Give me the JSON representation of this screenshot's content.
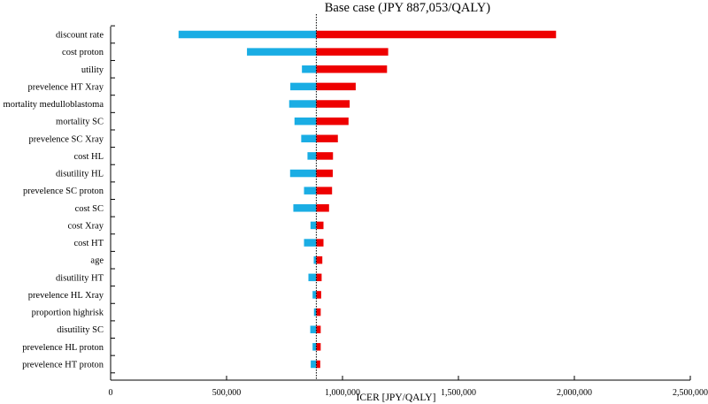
{
  "chart_data": {
    "type": "tornado",
    "title": "Base case (JPY 887,053/QALY)",
    "base_case": 887053,
    "xlabel": "ICER [JPY/QALY]",
    "ylabel": "",
    "xlim": [
      0,
      2500000
    ],
    "x_ticks": [
      0,
      500000,
      1000000,
      1500000,
      2000000,
      2500000
    ],
    "x_tick_labels": [
      "0",
      "500,000",
      "1,000,000",
      "1,500,000",
      "2,000,000",
      "2,500,000"
    ],
    "grid": false,
    "legend": null,
    "colors": {
      "low": "#1AADE4",
      "high": "#EE0000"
    },
    "parameters": [
      {
        "name": "discount rate",
        "low": 293000,
        "high": 1921000
      },
      {
        "name": "cost proton",
        "low": 588000,
        "high": 1197000
      },
      {
        "name": "utility",
        "low": 825000,
        "high": 1192000
      },
      {
        "name": "prevelence HT Xray",
        "low": 775000,
        "high": 1057000
      },
      {
        "name": "mortality medulloblastoma",
        "low": 770000,
        "high": 1031000
      },
      {
        "name": "mortality SC",
        "low": 793000,
        "high": 1026000
      },
      {
        "name": "prevelence SC Xray",
        "low": 822000,
        "high": 980000
      },
      {
        "name": "cost HL",
        "low": 849000,
        "high": 959000
      },
      {
        "name": "disutility HL",
        "low": 774000,
        "high": 958000
      },
      {
        "name": "prevelence SC proton",
        "low": 834000,
        "high": 955000
      },
      {
        "name": "cost SC",
        "low": 788000,
        "high": 942000
      },
      {
        "name": "cost Xray",
        "low": 862000,
        "high": 918000
      },
      {
        "name": "cost HT",
        "low": 834000,
        "high": 918000
      },
      {
        "name": "age",
        "low": 876000,
        "high": 913000
      },
      {
        "name": "disutility HT",
        "low": 853000,
        "high": 910000
      },
      {
        "name": "prevelence HL Xray",
        "low": 871000,
        "high": 908000
      },
      {
        "name": "proportion highrisk",
        "low": 877000,
        "high": 906000
      },
      {
        "name": "disutility SC",
        "low": 861000,
        "high": 906000
      },
      {
        "name": "prevelence HL proton",
        "low": 871000,
        "high": 906000
      },
      {
        "name": "prevelence HT proton",
        "low": 863000,
        "high": 904000
      }
    ]
  }
}
